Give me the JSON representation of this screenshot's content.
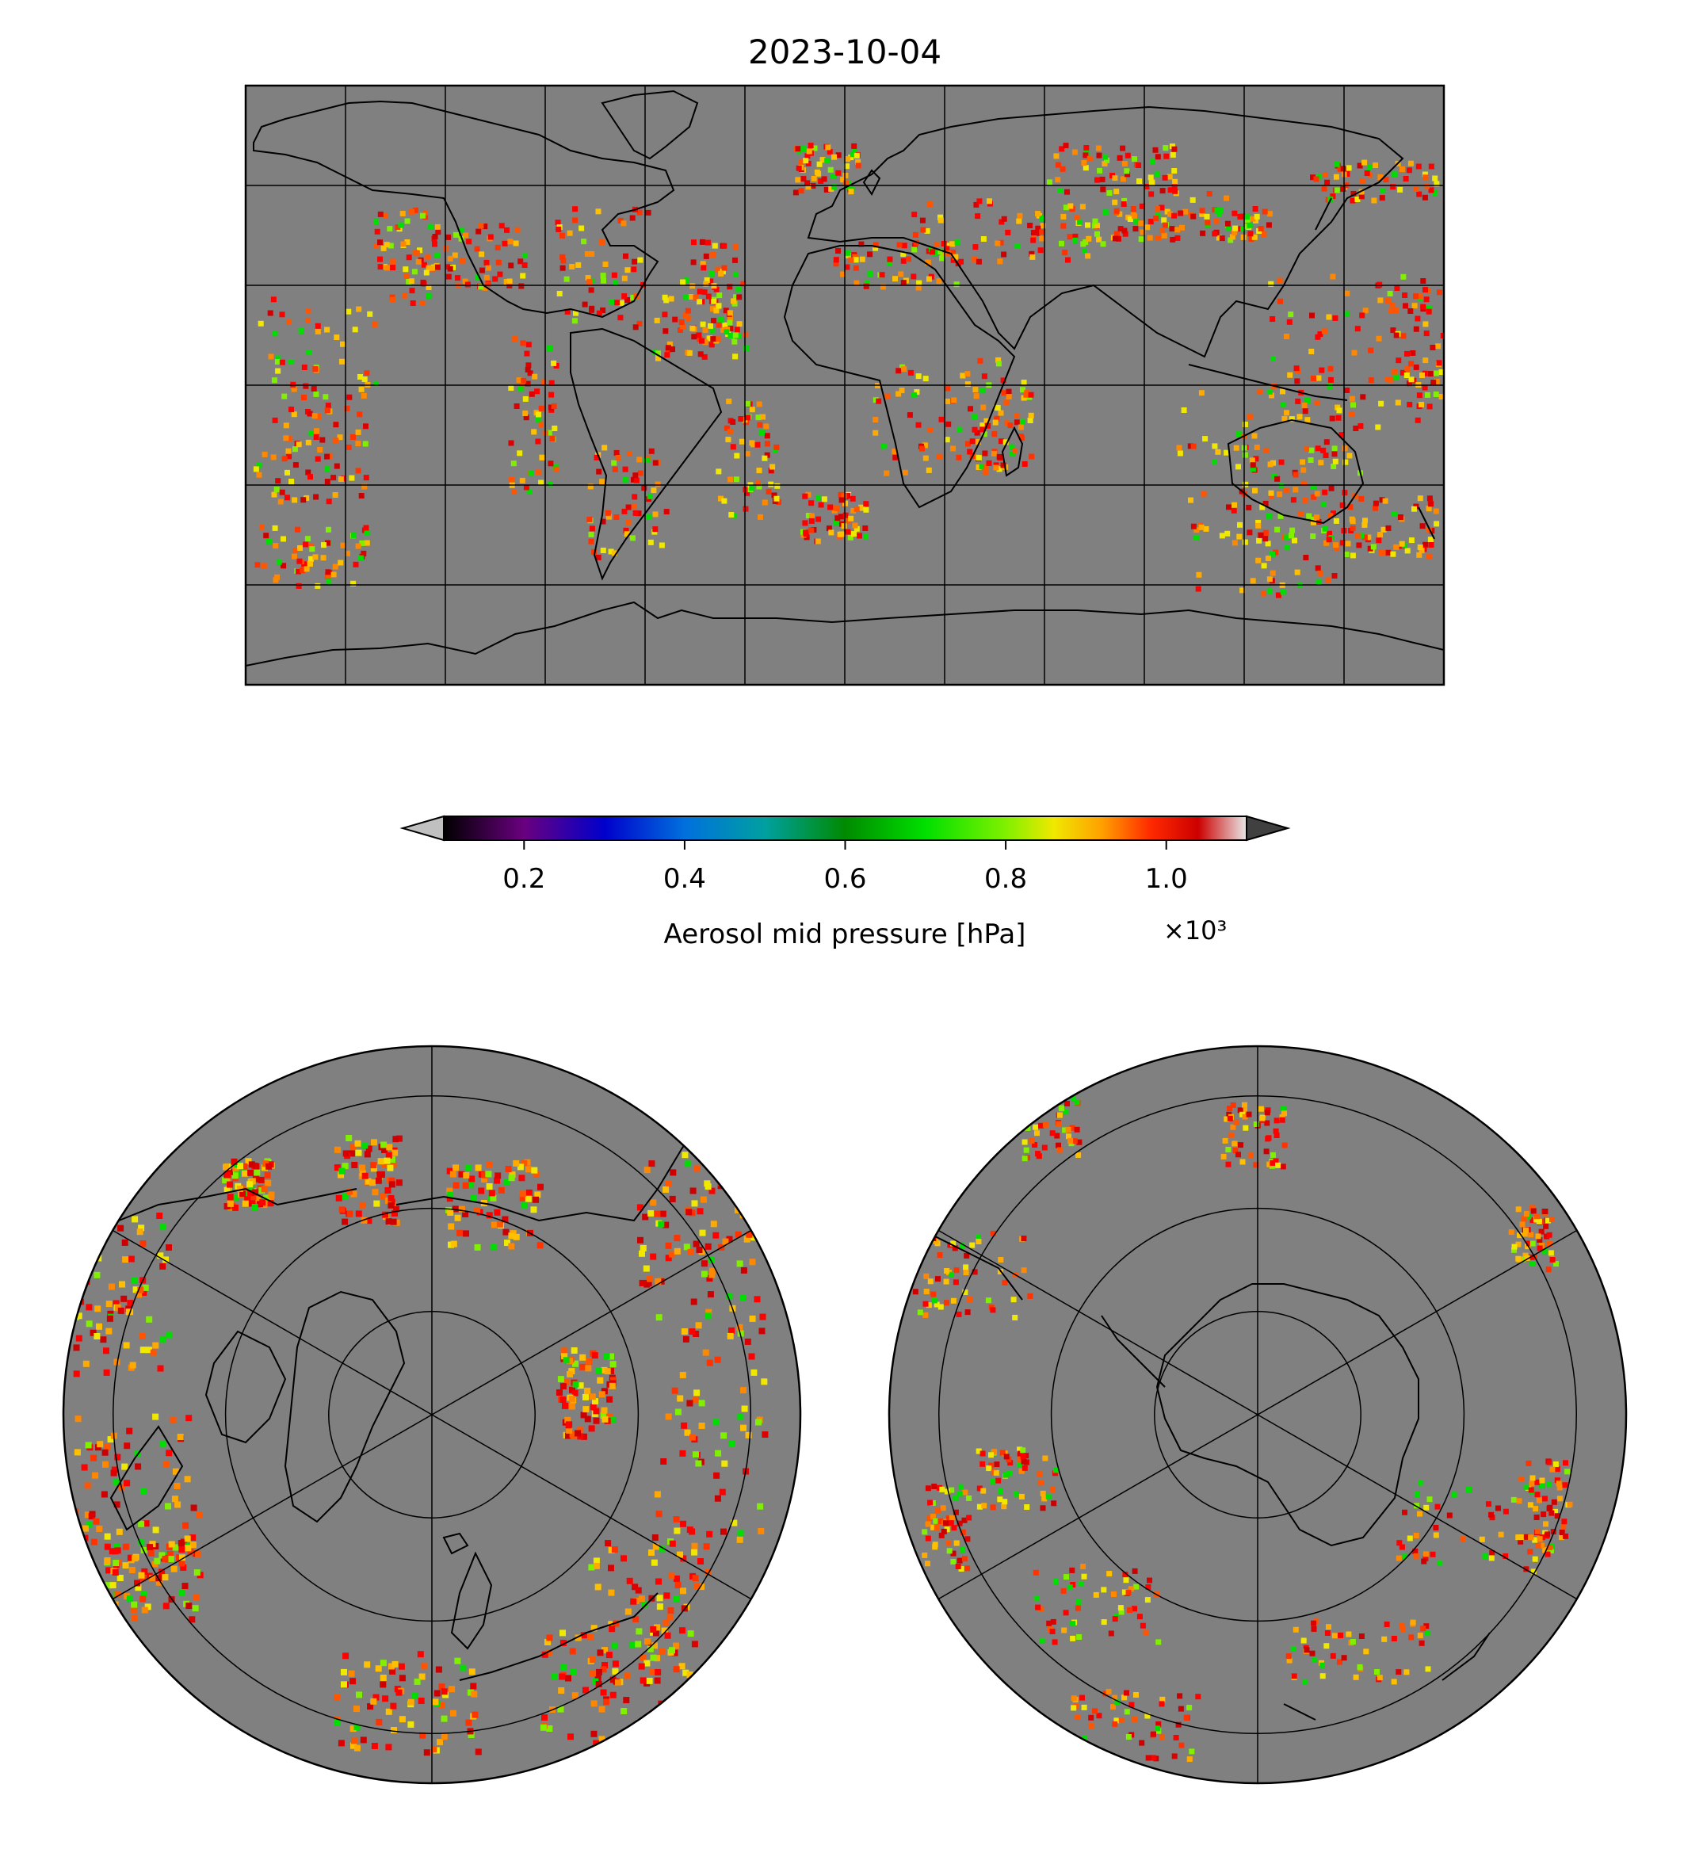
{
  "title": "2023-10-04",
  "colorbar": {
    "label": "Aerosol mid pressure [hPa]",
    "offset_text": "×10³",
    "ticks": [
      {
        "value": 0.2,
        "label": "0.2"
      },
      {
        "value": 0.4,
        "label": "0.4"
      },
      {
        "value": 0.6,
        "label": "0.6"
      },
      {
        "value": 0.8,
        "label": "0.8"
      },
      {
        "value": 1.0,
        "label": "1.0"
      }
    ],
    "range": [
      0.1,
      1.1
    ],
    "extend": "both",
    "under_color": "#c0c0c0",
    "over_color": "#404040",
    "colormap": [
      [
        0.0,
        "#000000"
      ],
      [
        0.1,
        "#6a007f"
      ],
      [
        0.2,
        "#0000cc"
      ],
      [
        0.3,
        "#0070dd"
      ],
      [
        0.4,
        "#00a0a0"
      ],
      [
        0.5,
        "#008a00"
      ],
      [
        0.6,
        "#00e000"
      ],
      [
        0.7,
        "#80f000"
      ],
      [
        0.76,
        "#f0e800"
      ],
      [
        0.82,
        "#ffa000"
      ],
      [
        0.88,
        "#ff2a00"
      ],
      [
        0.94,
        "#cc0000"
      ],
      [
        1.0,
        "#e8e8e8"
      ]
    ]
  },
  "colors": {
    "ocean": "#808080",
    "coastline": "#000000",
    "grid": "#000000",
    "nodata": "#808080"
  },
  "panels": [
    {
      "id": "global",
      "projection": "PlateCarree",
      "extent": [
        -180,
        180,
        -90,
        90
      ],
      "graticule_step": 30
    },
    {
      "id": "north-pole",
      "projection": "NorthPolarStereo",
      "graticule_step_lat": 15,
      "graticule_step_lon": 60
    },
    {
      "id": "south-pole",
      "projection": "SouthPolarStereo",
      "graticule_step_lat": 15,
      "graticule_step_lon": 60
    }
  ]
}
